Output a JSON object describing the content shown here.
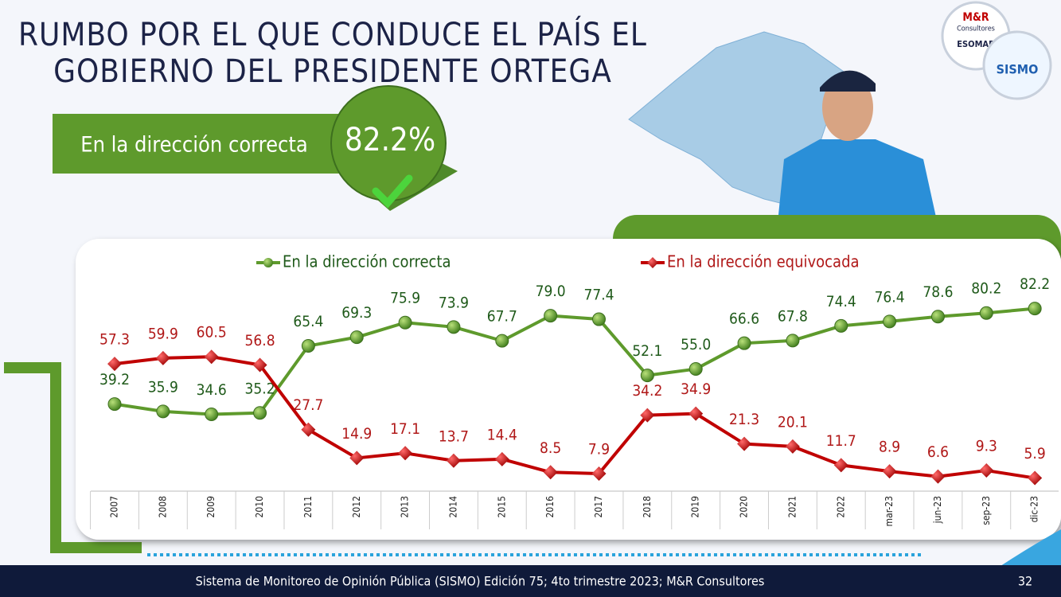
{
  "title": [
    "RUMBO POR EL QUE CONDUCE EL PAÍS EL",
    "GOBIERNO DEL PRESIDENTE ORTEGA"
  ],
  "badge": {
    "label": "En la dirección correcta",
    "value": "82.2%"
  },
  "logos": [
    "M&R",
    "Consultores",
    "ESOMAR",
    "SISMO"
  ],
  "chart_data": {
    "type": "line",
    "categories": [
      "2007",
      "2008",
      "2009",
      "2010",
      "2011",
      "2012",
      "2013",
      "2014",
      "2015",
      "2016",
      "2017",
      "2018",
      "2019",
      "2020",
      "2021",
      "2022",
      "mar-23",
      "jun-23",
      "sep-23",
      "dic-23"
    ],
    "series": [
      {
        "name": "En la dirección correcta",
        "color": "#5e9a2c",
        "label_color": "#1f5a1a",
        "values": [
          39.2,
          35.9,
          34.6,
          35.2,
          65.4,
          69.3,
          75.9,
          73.9,
          67.7,
          79.0,
          77.4,
          52.1,
          55.0,
          66.6,
          67.8,
          74.4,
          76.4,
          78.6,
          80.2,
          82.2
        ],
        "value_labels": [
          "39.2",
          "35.9",
          "34.6",
          "35.2",
          "65.4",
          "69.3",
          "75.9",
          "73.9",
          "67.7",
          "79.0",
          "77.4",
          "52.1",
          "55.0",
          "66.6",
          "67.8",
          "74.4",
          "76.4",
          "78.6",
          "80.2",
          "82.2"
        ]
      },
      {
        "name": "En la dirección equivocada",
        "color": "#c00000",
        "label_color": "#b01818",
        "values": [
          57.3,
          59.9,
          60.5,
          56.8,
          27.7,
          14.9,
          17.1,
          13.7,
          14.4,
          8.5,
          7.9,
          34.2,
          34.9,
          21.3,
          20.1,
          11.7,
          8.9,
          6.6,
          9.3,
          5.9
        ],
        "value_labels": [
          "57.3",
          "59.9",
          "60.5",
          "56.8",
          "27.7",
          "14.9",
          "17.1",
          "13.7",
          "14.4",
          "8.5",
          "7.9",
          "34.2",
          "34.9",
          "21.3",
          "20.1",
          "11.7",
          "8.9",
          "6.6",
          "9.3",
          "5.9"
        ]
      }
    ],
    "ylim": [
      0,
      100
    ],
    "grid": false,
    "legend": "top"
  },
  "footer": {
    "source": "Sistema de Monitoreo de Opinión Pública (SISMO) Edición 75; 4to trimestre 2023; M&R Consultores",
    "page": "32"
  }
}
